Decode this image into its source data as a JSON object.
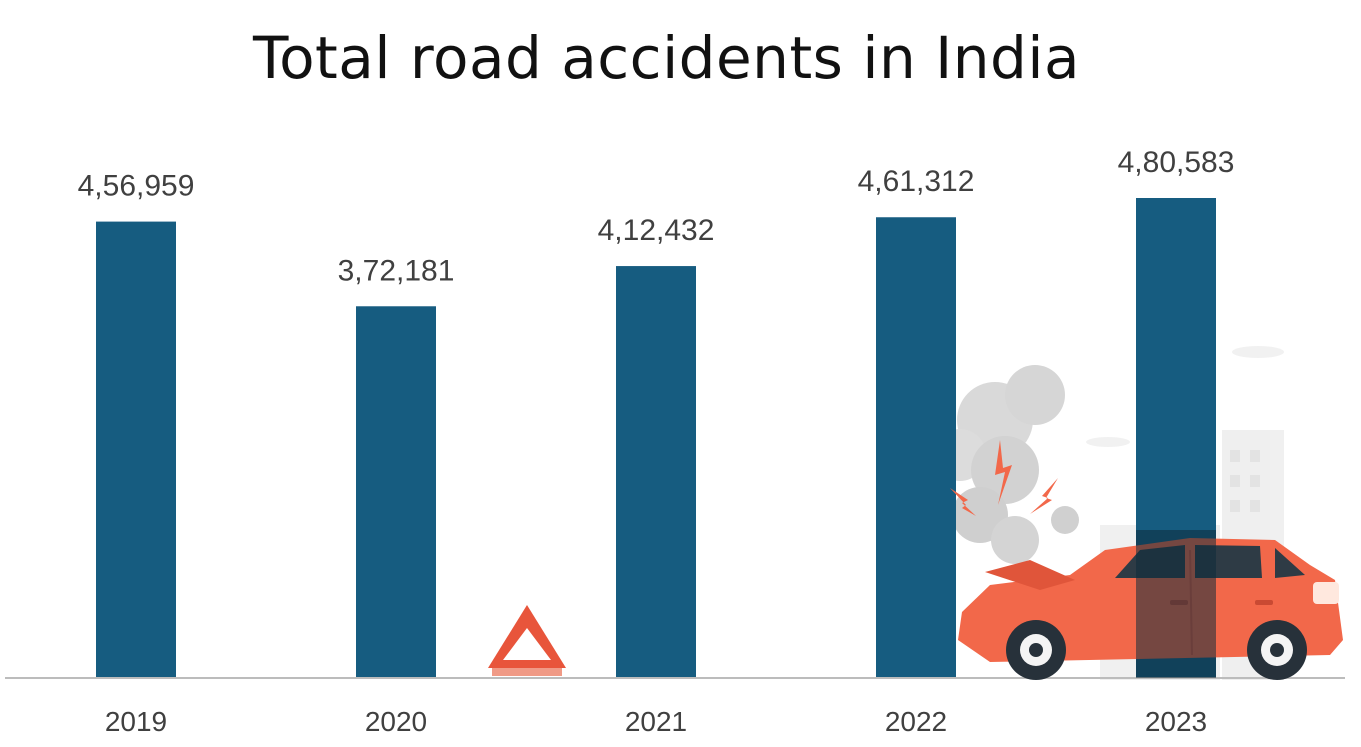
{
  "chart_data": {
    "type": "bar",
    "title": "Total road accidents in India",
    "xlabel": "",
    "ylabel": "",
    "categories": [
      "2019",
      "2020",
      "2021",
      "2022",
      "2023"
    ],
    "values": [
      456959,
      372181,
      412432,
      461312,
      480583
    ],
    "value_labels": [
      "4,56,959",
      "3,72,181",
      "4,12,432",
      "4,61,312",
      "4,80,583"
    ],
    "ylim": [
      0,
      480583
    ],
    "grid": false,
    "legend": "none",
    "colors": {
      "bar": "#165c80",
      "text": "#404040",
      "axis": "#bcbcbc"
    }
  },
  "illustration": {
    "icons": [
      "warning-triangle-icon",
      "crashed-car-icon",
      "smoke-icon",
      "spark-icon",
      "building-icon"
    ],
    "colors": {
      "car": "#f2684a",
      "triangle": "#e8553b",
      "smoke": "#d4d4d4"
    }
  }
}
